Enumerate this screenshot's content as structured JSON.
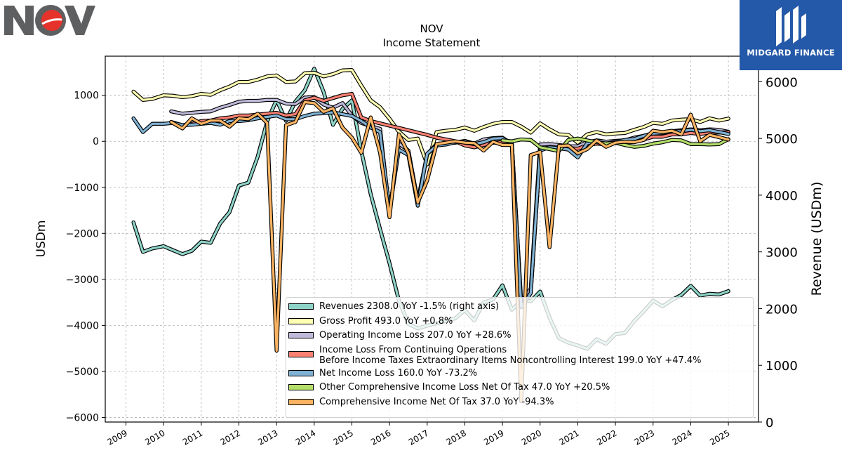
{
  "brand": {
    "left_logo": "NOV",
    "right_logo": "MIDGARD FINANCE"
  },
  "chart_data": {
    "type": "line",
    "title": "NOV",
    "subtitle": "Income Statement",
    "ylabel": "USDm",
    "ylabel_right": "Revenue (USDm)",
    "ylim": [
      -6100,
      1850
    ],
    "ylim_right": [
      0,
      6450
    ],
    "yticks": [
      1000,
      0,
      -1000,
      -2000,
      -3000,
      -4000,
      -5000,
      -6000
    ],
    "yticks_right": [
      6000,
      5000,
      4000,
      3000,
      2000,
      1000,
      0
    ],
    "xlim": [
      2008.45,
      2025.8
    ],
    "xticks": [
      "2009",
      "2010",
      "2011",
      "2012",
      "2013",
      "2014",
      "2015",
      "2016",
      "2017",
      "2018",
      "2019",
      "2020",
      "2021",
      "2022",
      "2023",
      "2024",
      "2025"
    ],
    "grid": true,
    "legend_position": "lower-right",
    "series": [
      {
        "name": "Revenues",
        "legend": "Revenues  2308.0 YoY -1.5% (right axis)",
        "color": "#8dd3c7",
        "axis": "right",
        "x": [
          2009.2,
          2009.45,
          2009.7,
          2010.0,
          2010.25,
          2010.5,
          2010.75,
          2011.0,
          2011.25,
          2011.5,
          2011.75,
          2012.0,
          2012.25,
          2012.5,
          2012.75,
          2013.0,
          2013.25,
          2013.5,
          2013.75,
          2014.0,
          2014.25,
          2014.5,
          2014.75,
          2015.0,
          2015.25,
          2015.5,
          2015.75,
          2016.0,
          2016.25,
          2016.5,
          2016.75,
          2017.0,
          2017.25,
          2017.5,
          2017.75,
          2018.0,
          2018.25,
          2018.5,
          2018.75,
          2019.0,
          2019.25,
          2019.5,
          2019.75,
          2020.0,
          2020.25,
          2020.5,
          2020.75,
          2021.0,
          2021.25,
          2021.5,
          2021.75,
          2022.0,
          2022.25,
          2022.5,
          2022.75,
          2023.0,
          2023.25,
          2023.5,
          2023.75,
          2024.0,
          2024.25,
          2024.5,
          2024.75,
          2025.0
        ],
        "y": [
          3520,
          3000,
          3060,
          3100,
          3030,
          2960,
          3020,
          3180,
          3160,
          3500,
          3700,
          4170,
          4220,
          4680,
          5300,
          5680,
          5310,
          5650,
          5850,
          6230,
          5820,
          5240,
          5520,
          5670,
          4780,
          4020,
          3400,
          2800,
          2140,
          1730,
          1650,
          1700,
          1740,
          1780,
          1830,
          1970,
          1790,
          2110,
          2160,
          2410,
          1980,
          2140,
          2130,
          2300,
          1840,
          1480,
          1400,
          1350,
          1290,
          1460,
          1380,
          1550,
          1570,
          1780,
          1950,
          2140,
          2040,
          2150,
          2240,
          2400,
          2230,
          2260,
          2250,
          2308
        ]
      },
      {
        "name": "Gross Profit",
        "legend": "Gross Profit  493.0 YoY +0.8%",
        "color": "#ffffb3",
        "axis": "left",
        "x": [
          2009.2,
          2009.45,
          2009.7,
          2010.0,
          2010.25,
          2010.5,
          2010.75,
          2011.0,
          2011.25,
          2011.5,
          2011.75,
          2012.0,
          2012.25,
          2012.5,
          2012.75,
          2013.0,
          2013.25,
          2013.5,
          2013.75,
          2014.0,
          2014.25,
          2014.5,
          2014.75,
          2015.0,
          2015.25,
          2015.5,
          2015.75,
          2016.0,
          2016.25,
          2016.5,
          2016.75,
          2017.0,
          2017.25,
          2017.5,
          2017.75,
          2018.0,
          2018.25,
          2018.5,
          2018.75,
          2019.0,
          2019.25,
          2019.5,
          2019.75,
          2020.0,
          2020.25,
          2020.5,
          2020.75,
          2021.0,
          2021.25,
          2021.5,
          2021.75,
          2022.0,
          2022.25,
          2022.5,
          2022.75,
          2023.0,
          2023.25,
          2023.5,
          2023.75,
          2024.0,
          2024.25,
          2024.5,
          2024.75,
          2025.0
        ],
        "y": [
          1080,
          900,
          920,
          1000,
          990,
          960,
          980,
          1030,
          1010,
          1110,
          1190,
          1290,
          1290,
          1340,
          1410,
          1430,
          1290,
          1300,
          1480,
          1490,
          1410,
          1460,
          1540,
          1550,
          1210,
          890,
          740,
          490,
          210,
          30,
          60,
          -500,
          200,
          230,
          250,
          300,
          230,
          310,
          380,
          420,
          420,
          320,
          190,
          390,
          260,
          150,
          140,
          -30,
          150,
          200,
          150,
          170,
          180,
          250,
          310,
          400,
          380,
          450,
          470,
          480,
          420,
          500,
          450,
          493
        ]
      },
      {
        "name": "Operating Income Loss",
        "legend": "Operating Income Loss  207.0 YoY +28.6%",
        "color": "#bebada",
        "axis": "left",
        "x": [
          2010.2,
          2010.5,
          2010.75,
          2011.0,
          2011.25,
          2011.5,
          2011.75,
          2012.0,
          2012.25,
          2012.5,
          2012.75,
          2013.0,
          2013.25,
          2013.5,
          2013.75,
          2014.0,
          2014.25,
          2014.5,
          2014.75,
          2015.0,
          2015.25,
          2015.5,
          2015.75,
          2016.0,
          2016.25,
          2016.5,
          2016.75,
          2017.0,
          2017.25,
          2017.5,
          2017.75,
          2018.0,
          2018.25,
          2018.5,
          2018.75,
          2019.0,
          2019.25,
          2019.5,
          2019.75,
          2020.0,
          2020.25,
          2020.5,
          2020.75,
          2021.0,
          2021.25,
          2021.5,
          2021.75,
          2022.0,
          2022.25,
          2022.5,
          2022.75,
          2023.0,
          2023.25,
          2023.5,
          2023.75,
          2024.0,
          2024.25,
          2024.5,
          2024.75,
          2025.0
        ],
        "y": [
          650,
          600,
          620,
          640,
          650,
          730,
          790,
          860,
          880,
          880,
          900,
          900,
          820,
          810,
          950,
          960,
          800,
          730,
          830,
          560,
          400,
          330,
          270,
          -1550,
          -50,
          -200,
          -1300,
          -280,
          -60,
          -40,
          -30,
          10,
          -50,
          40,
          70,
          80,
          -60,
          -3500,
          -3200,
          -70,
          -60,
          -80,
          -110,
          -110,
          -20,
          20,
          -10,
          10,
          20,
          80,
          120,
          170,
          170,
          220,
          240,
          260,
          240,
          260,
          250,
          207
        ]
      },
      {
        "name": "Income Loss From Continuing Operations Before Income Taxes Extraordinary Items Noncontrolling Interest",
        "legend": "Income Loss From Continuing Operations|Before Income Taxes Extraordinary Items Noncontrolling Interest  199.0 YoY +47.4%",
        "color": "#fb8072",
        "axis": "left",
        "x": [
          2010.2,
          2010.5,
          2010.75,
          2011.0,
          2011.25,
          2011.5,
          2011.75,
          2012.0,
          2012.25,
          2012.5,
          2012.75,
          2013.0,
          2013.25,
          2013.5,
          2013.75,
          2014.0,
          2014.25,
          2014.5,
          2014.75,
          2015.0,
          2015.25,
          2015.5,
          2015.75,
          2016.0,
          2016.25,
          2016.5,
          2016.75,
          2017.0,
          2017.25,
          2017.5,
          2017.75,
          2018.0,
          2018.25,
          2018.5,
          2018.75,
          2019.0,
          2019.25,
          2019.5,
          2019.75,
          2020.0,
          2020.25,
          2020.5,
          2020.75,
          2021.0,
          2021.25,
          2021.5,
          2021.75,
          2022.0,
          2022.25,
          2022.5,
          2022.75,
          2023.0,
          2023.25,
          2023.5,
          2023.75,
          2024.0,
          2024.25,
          2024.5,
          2024.75,
          2025.0
        ],
        "y": [
          420,
          350,
          380,
          440,
          450,
          500,
          520,
          560,
          560,
          580,
          600,
          620,
          560,
          590,
          890,
          950,
          880,
          940,
          1000,
          1030,
          520,
          440,
          390,
          340,
          290,
          240,
          190,
          140,
          80,
          40,
          0,
          -90,
          -130,
          -80,
          -30,
          -20,
          -80,
          -3600,
          -3300,
          -200,
          -120,
          -140,
          -150,
          -160,
          -90,
          -50,
          -70,
          -30,
          -20,
          30,
          40,
          100,
          100,
          150,
          150,
          180,
          160,
          190,
          190,
          199
        ]
      },
      {
        "name": "Net Income Loss",
        "legend": "Net Income Loss  160.0 YoY -73.2%",
        "color": "#80b1d3",
        "axis": "left",
        "x": [
          2009.2,
          2009.45,
          2009.7,
          2010.0,
          2010.25,
          2010.5,
          2010.75,
          2011.0,
          2011.25,
          2011.5,
          2011.75,
          2012.0,
          2012.25,
          2012.5,
          2012.75,
          2013.0,
          2013.25,
          2013.5,
          2013.75,
          2014.0,
          2014.25,
          2014.5,
          2014.75,
          2015.0,
          2015.25,
          2015.5,
          2015.75,
          2016.0,
          2016.25,
          2016.5,
          2016.75,
          2017.0,
          2017.25,
          2017.5,
          2017.75,
          2018.0,
          2018.25,
          2018.5,
          2018.75,
          2019.0,
          2019.25,
          2019.5,
          2019.75,
          2020.0,
          2020.25,
          2020.5,
          2020.75,
          2021.0,
          2021.25,
          2021.5,
          2021.75,
          2022.0,
          2022.25,
          2022.5,
          2022.75,
          2023.0,
          2023.25,
          2023.5,
          2023.75,
          2024.0,
          2024.25,
          2024.5,
          2024.75,
          2025.0
        ],
        "y": [
          500,
          200,
          380,
          380,
          400,
          350,
          360,
          380,
          400,
          360,
          440,
          440,
          460,
          500,
          530,
          560,
          480,
          480,
          550,
          600,
          610,
          630,
          590,
          550,
          440,
          300,
          200,
          -1500,
          -180,
          -300,
          -1400,
          -270,
          -90,
          -70,
          -20,
          0,
          -60,
          -20,
          60,
          70,
          -50,
          -3600,
          -3300,
          -200,
          -130,
          -150,
          -180,
          -350,
          -40,
          -10,
          -50,
          -10,
          30,
          50,
          120,
          170,
          180,
          210,
          220,
          250,
          220,
          240,
          200,
          160
        ]
      },
      {
        "name": "Other Comprehensive Income Loss Net Of Tax",
        "legend": "Other Comprehensive Income Loss Net Of Tax  47.0 YoY +20.5%",
        "color": "#b3de69",
        "axis": "left",
        "x": [
          2019.0,
          2019.25,
          2019.5,
          2019.75,
          2020.0,
          2020.25,
          2020.5,
          2020.75,
          2021.0,
          2021.25,
          2021.5,
          2021.75,
          2022.0,
          2022.25,
          2022.5,
          2022.75,
          2023.0,
          2023.25,
          2023.5,
          2023.75,
          2024.0,
          2024.25,
          2024.5,
          2024.75,
          2025.0
        ],
        "y": [
          20,
          0,
          40,
          30,
          -130,
          -170,
          -210,
          30,
          60,
          20,
          -20,
          -50,
          -30,
          -80,
          -120,
          -100,
          -50,
          -20,
          30,
          20,
          -60,
          -60,
          -70,
          -60,
          47
        ]
      },
      {
        "name": "Comprehensive Income Net Of Tax",
        "legend": "Comprehensive Income Net Of Tax  37.0 YoY -94.3%",
        "color": "#fdb462",
        "axis": "left",
        "x": [
          2010.2,
          2010.5,
          2010.75,
          2011.0,
          2011.25,
          2011.5,
          2011.75,
          2012.0,
          2012.25,
          2012.5,
          2012.75,
          2013.0,
          2013.25,
          2013.5,
          2013.75,
          2014.0,
          2014.25,
          2014.5,
          2014.75,
          2015.0,
          2015.25,
          2015.5,
          2015.75,
          2016.0,
          2016.25,
          2016.5,
          2016.75,
          2017.0,
          2017.25,
          2017.5,
          2017.75,
          2018.0,
          2018.25,
          2018.5,
          2018.75,
          2019.0,
          2019.25,
          2019.5,
          2019.75,
          2020.0,
          2020.25,
          2020.5,
          2020.75,
          2021.0,
          2021.25,
          2021.5,
          2021.75,
          2022.0,
          2022.25,
          2022.5,
          2022.75,
          2023.0,
          2023.25,
          2023.5,
          2023.75,
          2024.0,
          2024.25,
          2024.5,
          2024.75,
          2025.0
        ],
        "y": [
          420,
          280,
          500,
          380,
          450,
          450,
          320,
          500,
          480,
          600,
          400,
          -4550,
          350,
          420,
          850,
          830,
          640,
          720,
          300,
          80,
          -250,
          520,
          -250,
          -1650,
          150,
          -260,
          -1330,
          -850,
          -60,
          -30,
          0,
          -30,
          -40,
          -200,
          -10,
          -80,
          -80,
          -5650,
          -300,
          -230,
          -2300,
          -100,
          -90,
          -260,
          -170,
          20,
          -120,
          -30,
          -10,
          -20,
          30,
          230,
          200,
          230,
          150,
          580,
          0,
          140,
          90,
          37
        ]
      }
    ]
  }
}
